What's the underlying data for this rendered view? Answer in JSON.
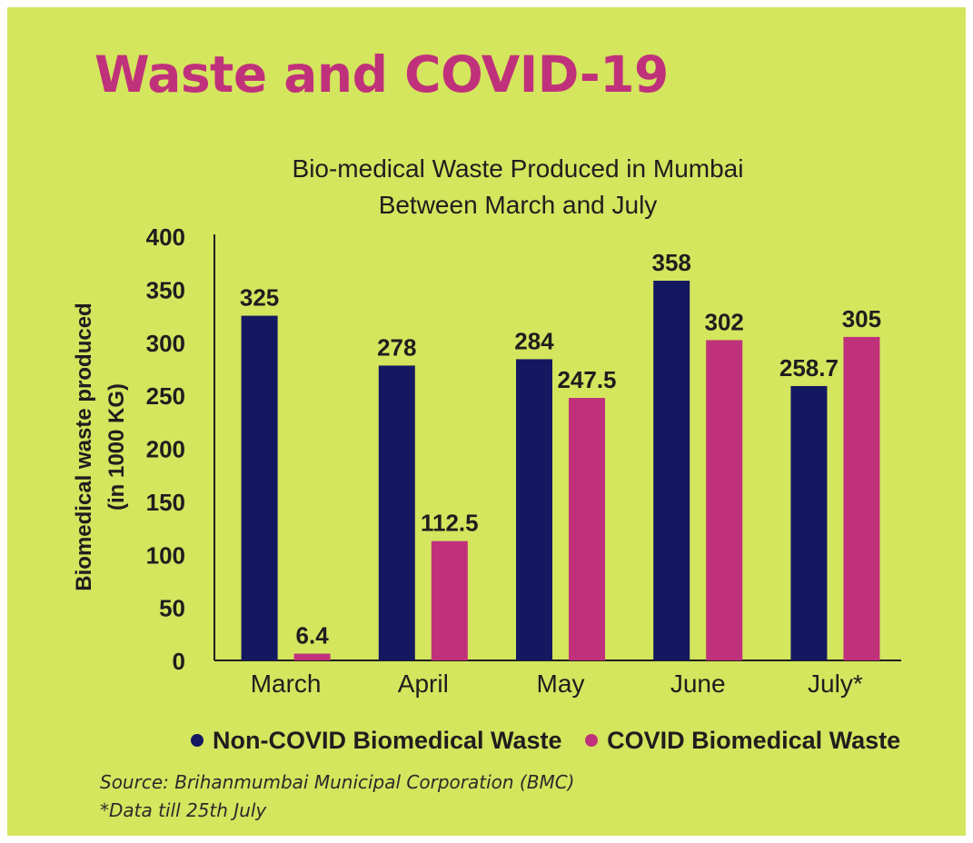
{
  "headline": "Waste and COVID-19",
  "colors": {
    "background": "#d4e55e",
    "headline": "#c0317b",
    "non_covid": "#141861",
    "covid": "#c0317b"
  },
  "chart_data": {
    "type": "bar",
    "title_lines": [
      "Bio-medical Waste Produced in Mumbai",
      "Between March and July"
    ],
    "ylabel_lines": [
      "Biomedical waste produced",
      "(in 1000 KG)"
    ],
    "xlabel": "",
    "ylim": [
      0,
      400
    ],
    "yticks": [
      0,
      50,
      100,
      150,
      200,
      250,
      300,
      350,
      400
    ],
    "categories": [
      "March",
      "April",
      "May",
      "June",
      "July*"
    ],
    "series": [
      {
        "name": "Non-COVID Biomedical Waste",
        "color": "#141861",
        "values": [
          325,
          278,
          284,
          358,
          258.7
        ],
        "labels": [
          "325",
          "278",
          "284",
          "358",
          "258.7"
        ]
      },
      {
        "name": "COVID Biomedical Waste",
        "color": "#c0317b",
        "values": [
          6.4,
          112.5,
          247.5,
          302,
          305
        ],
        "labels": [
          "6.4",
          "112.5",
          "247.5",
          "302",
          "305"
        ]
      }
    ],
    "grid": false,
    "legend_position": "bottom"
  },
  "footnotes": {
    "source": "Source: Brihanmumbai Municipal Corporation (BMC)",
    "note": "*Data till 25th July"
  }
}
